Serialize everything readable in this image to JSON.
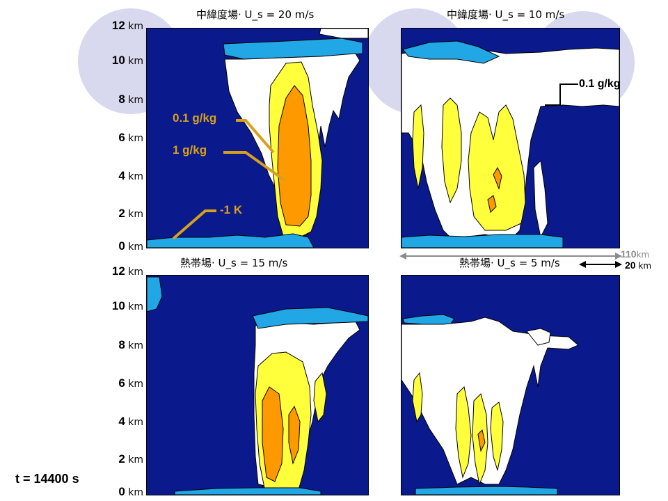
{
  "panels": [
    {
      "title": "中緯度場· U_s = 20 m/s"
    },
    {
      "title": "中緯度場· U_s = 10 m/s"
    },
    {
      "title": "熱帯場· U_s = 15 m/s"
    },
    {
      "title": "熱帯場· U_s = 5 m/s"
    }
  ],
  "y_axis": {
    "unit": "km",
    "ticks": [
      "12",
      "10",
      "8",
      "6",
      "4",
      "2",
      "0"
    ]
  },
  "annotations": {
    "mixing_ratio_low": "0.1 g/kg",
    "mixing_ratio_high": "1 g/kg",
    "cold_pool": "-1 K",
    "panel2_label": "0.1 g/kg"
  },
  "scale_bars": {
    "domain_value": "110",
    "domain_unit": "km",
    "bar_value": "20",
    "bar_unit": "km"
  },
  "time_label": "t = 14400 s",
  "colors": {
    "background_blue": "#0a1a8c",
    "light_blue": "#21a6e6",
    "yellow": "#ffff3c",
    "orange": "#ff9900",
    "white": "#ffffff",
    "annotation": "#d8a01a",
    "slide_circles": "#d8d8ee"
  }
}
